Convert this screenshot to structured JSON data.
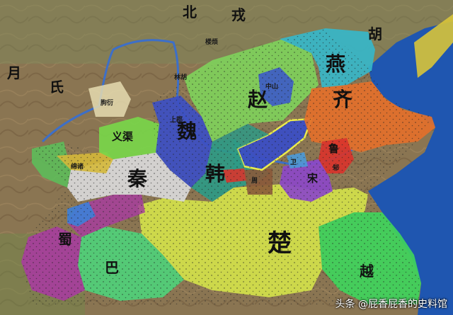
{
  "labels": {
    "bei": "北",
    "rong": "戎",
    "hu_ne": "胡",
    "yue_w": "月",
    "shi": "氏",
    "loufan": "楼烦",
    "linhu": "林胡",
    "zhao": "赵",
    "yan": "燕",
    "qi": "齐",
    "wei": "魏",
    "han": "韩",
    "qin": "秦",
    "chu": "楚",
    "yue_se": "越",
    "shu": "蜀",
    "ba": "巴",
    "yiqu": "义渠",
    "song": "宋",
    "lu": "鲁",
    "wey": "卫",
    "zhou": "周",
    "small_1": "朐衍",
    "small_2": "绵诸",
    "small_3": "上郡",
    "small_4": "中山",
    "small_5": "邾"
  },
  "watermark": "头条 @屁香屁香的史料馆",
  "colors": {
    "sea": "#1f56b0",
    "mountain": "#8a7552",
    "qin": "#d8d8d8",
    "wei": "#3c4fc4",
    "han": "#2e9a86",
    "zhao": "#7fd05b",
    "yan": "#37b6c8",
    "qi": "#e3702b",
    "chu": "#d2e04a",
    "yue": "#3fd45c",
    "shu": "#a63e9c",
    "ba": "#4fd07a",
    "song": "#8c48c8",
    "lu": "#d8342c",
    "yiqu": "#78d64a",
    "highlight": "#f2f24a"
  }
}
